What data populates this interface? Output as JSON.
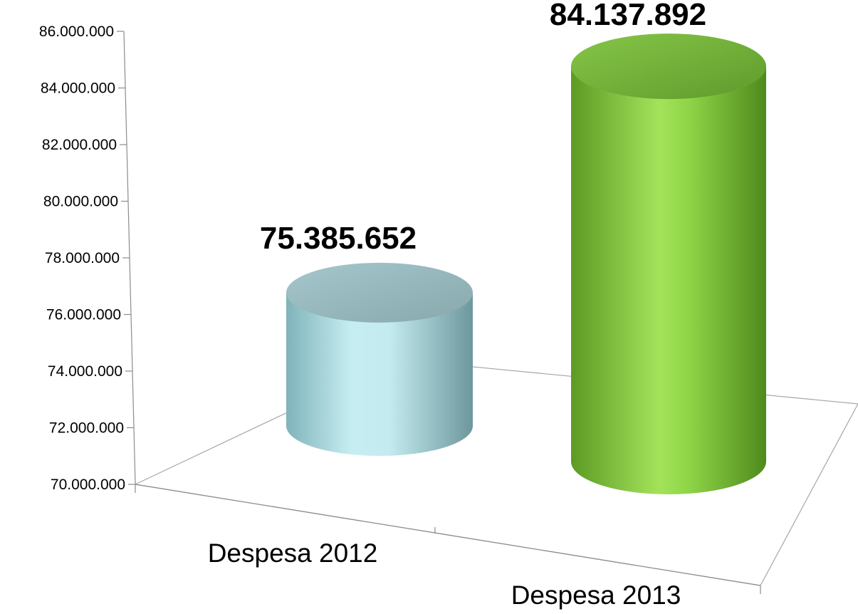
{
  "chart_data": {
    "type": "bar",
    "style": "3d-cylinder",
    "categories": [
      "Despesa 2012",
      "Despesa 2013"
    ],
    "series": [
      {
        "values": [
          75385652,
          84137892
        ]
      }
    ],
    "data_labels": [
      "75.385.652",
      "84.137.892"
    ],
    "bar_colors": [
      "#c4ecf0",
      "#8fd548"
    ],
    "ylim": [
      70000000,
      86000000
    ],
    "yticks": [
      70000000,
      72000000,
      74000000,
      76000000,
      78000000,
      80000000,
      82000000,
      84000000,
      86000000
    ],
    "ytick_labels": [
      "70.000.000",
      "72.000.000",
      "74.000.000",
      "76.000.000",
      "78.000.000",
      "80.000.000",
      "82.000.000",
      "84.000.000",
      "86.000.000"
    ],
    "title": "",
    "xlabel": "",
    "ylabel": "",
    "legend": "none",
    "grid": false
  }
}
